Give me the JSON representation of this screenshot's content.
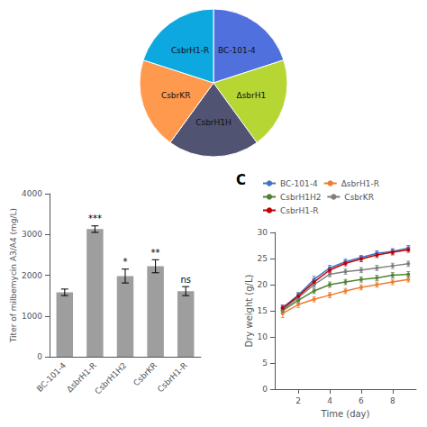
{
  "chart_data": [
    {
      "type": "pie",
      "categories": [
        "BC-101-4",
        "ΔsbrH1",
        "CsbrH1H",
        "CsbrKR",
        "CsbrH1-R"
      ],
      "values": [
        20,
        20,
        20,
        20,
        20
      ]
    },
    {
      "type": "bar",
      "categories": [
        "BC-101-4",
        "ΔsbrH1-R",
        "CsbrH1H2",
        "CsbrKR",
        "CsbrH1-R"
      ],
      "values": [
        1580,
        3130,
        1980,
        2220,
        1610
      ],
      "errors": [
        80,
        80,
        170,
        160,
        110
      ],
      "annotations": [
        null,
        "***",
        "*",
        "**",
        "ns"
      ],
      "color": "#9e9e9e",
      "ylabel": "Titer of milbemycin A3/A4 (mg/L)",
      "ylim": [
        0,
        4000
      ],
      "yticks": [
        0,
        1000,
        2000,
        3000,
        4000
      ],
      "grid": false
    },
    {
      "type": "line",
      "x": [
        1,
        2,
        3,
        4,
        5,
        6,
        7,
        8,
        9
      ],
      "series": [
        {
          "name": "BC-101-4",
          "color": "#4472c4",
          "values": [
            15.6,
            18.0,
            21.0,
            23.2,
            24.4,
            25.2,
            26.0,
            26.4,
            27.0
          ],
          "errors": [
            0.5,
            0.5,
            0.6,
            0.5,
            0.5,
            0.4,
            0.5,
            0.5,
            0.5
          ]
        },
        {
          "name": "ΔsbrH1-R",
          "color": "#ed7d31",
          "values": [
            14.5,
            16.2,
            17.2,
            18.0,
            18.8,
            19.5,
            20.0,
            20.5,
            21.0
          ],
          "errors": [
            0.8,
            0.6,
            0.5,
            0.5,
            0.5,
            0.5,
            0.5,
            0.5,
            0.5
          ]
        },
        {
          "name": "CsbrH1H2",
          "color": "#548235",
          "values": [
            15.0,
            17.0,
            18.8,
            20.0,
            20.5,
            21.0,
            21.3,
            21.8,
            22.0
          ],
          "errors": [
            0.5,
            0.5,
            0.5,
            0.5,
            0.5,
            0.5,
            0.5,
            0.5,
            0.5
          ]
        },
        {
          "name": "CsbrKR",
          "color": "#7f7f7f",
          "values": [
            15.2,
            17.5,
            20.0,
            22.0,
            22.5,
            22.8,
            23.2,
            23.6,
            24.0
          ],
          "errors": [
            0.5,
            0.5,
            0.5,
            0.5,
            0.5,
            0.5,
            0.5,
            0.5,
            0.5
          ]
        },
        {
          "name": "CsbrH1-R",
          "color": "#c00000",
          "values": [
            15.5,
            17.8,
            20.5,
            22.8,
            24.1,
            24.9,
            25.7,
            26.2,
            26.7
          ],
          "errors": [
            0.5,
            0.5,
            0.5,
            0.5,
            0.5,
            0.5,
            0.5,
            0.5,
            0.5
          ]
        }
      ],
      "xlabel": "Time (day)",
      "ylabel": "Dry weight (g/L)",
      "xlim": [
        0.5,
        9.5
      ],
      "xticks": [
        2,
        4,
        6,
        8
      ],
      "ylim": [
        0,
        30
      ],
      "yticks": [
        0,
        5,
        10,
        15,
        20,
        25,
        30
      ],
      "legend": "upper left",
      "marker": "circle",
      "grid": false,
      "annotations": [
        "C"
      ]
    }
  ]
}
